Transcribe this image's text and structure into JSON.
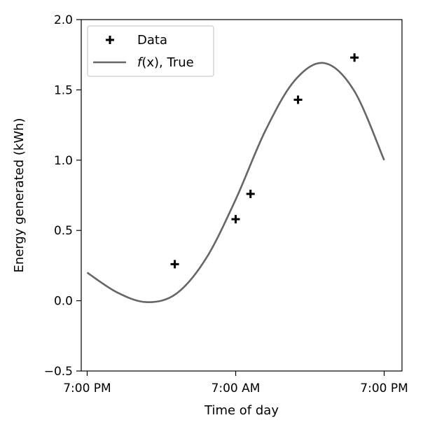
{
  "chart_data": {
    "type": "scatter",
    "title": "",
    "xlabel": "Time of day",
    "ylabel": "Energy generated (kWh)",
    "xlim": [
      -0.02,
      1.06
    ],
    "ylim": [
      -0.5,
      2.0
    ],
    "x_ticks": [
      {
        "value": 0,
        "label": "7:00 PM"
      },
      {
        "value": 0.5,
        "label": "7:00 AM"
      },
      {
        "value": 1.0,
        "label": "7:00 PM"
      }
    ],
    "y_ticks": [
      {
        "value": -0.5,
        "label": "−0.5"
      },
      {
        "value": 0.0,
        "label": "0.0"
      },
      {
        "value": 0.5,
        "label": "0.5"
      },
      {
        "value": 1.0,
        "label": "1.0"
      },
      {
        "value": 1.5,
        "label": "1.5"
      },
      {
        "value": 2.0,
        "label": "2.0"
      }
    ],
    "grid": false,
    "legend": {
      "location": "top-left",
      "entries": [
        {
          "label": "Data",
          "marker": "plus"
        },
        {
          "label_italic": "f",
          "label_rest": "(x), True",
          "style": "line"
        }
      ]
    },
    "series": [
      {
        "name": "Data",
        "kind": "scatter",
        "marker": "plus",
        "color": "#000000",
        "points": [
          [
            0.295,
            0.26
          ],
          [
            0.5,
            0.58
          ],
          [
            0.55,
            0.76
          ],
          [
            0.71,
            1.43
          ],
          [
            0.9,
            1.73
          ]
        ]
      },
      {
        "name": "f(x), True",
        "kind": "line",
        "color": "#666666",
        "x": [
          0.0,
          0.1,
          0.2,
          0.3,
          0.4,
          0.5,
          0.6,
          0.7,
          0.8,
          0.9,
          1.0
        ],
        "y": [
          0.2,
          0.06,
          -0.01,
          0.05,
          0.3,
          0.72,
          1.21,
          1.57,
          1.69,
          1.49,
          1.0
        ]
      }
    ]
  }
}
